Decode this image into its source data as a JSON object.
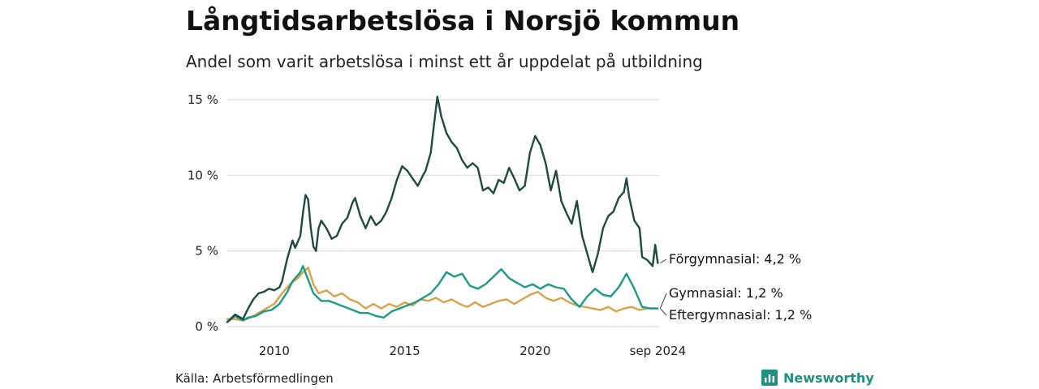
{
  "header": {
    "title": "Långtidsarbetslösa i Norsjö kommun",
    "subtitle": "Andel som varit arbetslösa i minst ett år uppdelat på utbildning"
  },
  "footer": {
    "source": "Källa: Arbetsförmedlingen",
    "brand": "Newsworthy",
    "brand_icon": "bar-chart-icon",
    "brand_color": "#1f9181"
  },
  "chart_data": {
    "type": "line",
    "xlim": [
      2008.2,
      2024.75
    ],
    "ylim": [
      0,
      15
    ],
    "y_ticks": [
      {
        "value": 0,
        "label": "0 %"
      },
      {
        "value": 5,
        "label": "5 %"
      },
      {
        "value": 10,
        "label": "10 %"
      },
      {
        "value": 15,
        "label": "15 %"
      }
    ],
    "x_ticks": [
      {
        "value": 2010,
        "label": "2010"
      },
      {
        "value": 2015,
        "label": "2015"
      },
      {
        "value": 2020,
        "label": "2020"
      },
      {
        "value": 2024.7,
        "label": "sep 2024"
      }
    ],
    "grid": true,
    "legend": "end-labels",
    "series": [
      {
        "label": "Förgymnasial: 4,2 %",
        "color": "#1e4a3f",
        "points": [
          [
            2008.2,
            0.3
          ],
          [
            2008.5,
            0.8
          ],
          [
            2008.8,
            0.5
          ],
          [
            2009.0,
            1.2
          ],
          [
            2009.2,
            1.8
          ],
          [
            2009.4,
            2.2
          ],
          [
            2009.6,
            2.3
          ],
          [
            2009.8,
            2.5
          ],
          [
            2010.0,
            2.4
          ],
          [
            2010.2,
            2.6
          ],
          [
            2010.3,
            3.0
          ],
          [
            2010.5,
            4.5
          ],
          [
            2010.7,
            5.7
          ],
          [
            2010.8,
            5.2
          ],
          [
            2011.0,
            6.0
          ],
          [
            2011.1,
            7.5
          ],
          [
            2011.2,
            8.7
          ],
          [
            2011.3,
            8.4
          ],
          [
            2011.4,
            6.5
          ],
          [
            2011.5,
            5.3
          ],
          [
            2011.6,
            5.0
          ],
          [
            2011.7,
            6.5
          ],
          [
            2011.8,
            7.0
          ],
          [
            2012.0,
            6.5
          ],
          [
            2012.2,
            5.8
          ],
          [
            2012.4,
            6.0
          ],
          [
            2012.6,
            6.8
          ],
          [
            2012.8,
            7.2
          ],
          [
            2013.0,
            8.2
          ],
          [
            2013.1,
            8.5
          ],
          [
            2013.3,
            7.3
          ],
          [
            2013.5,
            6.5
          ],
          [
            2013.7,
            7.3
          ],
          [
            2013.9,
            6.7
          ],
          [
            2014.1,
            7.0
          ],
          [
            2014.3,
            7.6
          ],
          [
            2014.5,
            8.5
          ],
          [
            2014.7,
            9.7
          ],
          [
            2014.9,
            10.6
          ],
          [
            2015.1,
            10.3
          ],
          [
            2015.3,
            9.8
          ],
          [
            2015.5,
            9.3
          ],
          [
            2015.7,
            10.0
          ],
          [
            2015.8,
            10.3
          ],
          [
            2016.0,
            11.5
          ],
          [
            2016.1,
            13.0
          ],
          [
            2016.25,
            15.2
          ],
          [
            2016.4,
            13.9
          ],
          [
            2016.6,
            12.8
          ],
          [
            2016.8,
            12.2
          ],
          [
            2017.0,
            11.8
          ],
          [
            2017.2,
            11.0
          ],
          [
            2017.4,
            10.5
          ],
          [
            2017.6,
            10.8
          ],
          [
            2017.8,
            10.5
          ],
          [
            2018.0,
            9.0
          ],
          [
            2018.2,
            9.2
          ],
          [
            2018.4,
            8.8
          ],
          [
            2018.6,
            9.7
          ],
          [
            2018.8,
            9.5
          ],
          [
            2019.0,
            10.5
          ],
          [
            2019.2,
            9.8
          ],
          [
            2019.4,
            9.0
          ],
          [
            2019.6,
            9.3
          ],
          [
            2019.8,
            11.5
          ],
          [
            2020.0,
            12.6
          ],
          [
            2020.2,
            12.0
          ],
          [
            2020.4,
            10.8
          ],
          [
            2020.6,
            9.0
          ],
          [
            2020.8,
            10.3
          ],
          [
            2021.0,
            8.3
          ],
          [
            2021.2,
            7.5
          ],
          [
            2021.4,
            6.8
          ],
          [
            2021.6,
            8.3
          ],
          [
            2021.8,
            6.0
          ],
          [
            2022.0,
            4.8
          ],
          [
            2022.2,
            3.6
          ],
          [
            2022.4,
            4.8
          ],
          [
            2022.6,
            6.5
          ],
          [
            2022.8,
            7.3
          ],
          [
            2023.0,
            7.6
          ],
          [
            2023.2,
            8.5
          ],
          [
            2023.4,
            8.9
          ],
          [
            2023.5,
            9.8
          ],
          [
            2023.6,
            8.6
          ],
          [
            2023.8,
            7.0
          ],
          [
            2024.0,
            6.5
          ],
          [
            2024.1,
            4.6
          ],
          [
            2024.3,
            4.4
          ],
          [
            2024.5,
            4.0
          ],
          [
            2024.6,
            5.4
          ],
          [
            2024.7,
            4.2
          ]
        ]
      },
      {
        "label": "Gymnasial: 1,2 %",
        "color": "#1d9a87",
        "points": [
          [
            2008.2,
            0.3
          ],
          [
            2008.5,
            0.7
          ],
          [
            2008.8,
            0.4
          ],
          [
            2009.0,
            0.6
          ],
          [
            2009.3,
            0.7
          ],
          [
            2009.6,
            1.0
          ],
          [
            2009.9,
            1.1
          ],
          [
            2010.2,
            1.5
          ],
          [
            2010.5,
            2.3
          ],
          [
            2010.7,
            3.0
          ],
          [
            2011.0,
            3.6
          ],
          [
            2011.1,
            4.0
          ],
          [
            2011.3,
            3.1
          ],
          [
            2011.5,
            2.2
          ],
          [
            2011.8,
            1.7
          ],
          [
            2012.1,
            1.7
          ],
          [
            2012.4,
            1.5
          ],
          [
            2012.7,
            1.3
          ],
          [
            2013.0,
            1.1
          ],
          [
            2013.3,
            0.9
          ],
          [
            2013.6,
            0.9
          ],
          [
            2013.9,
            0.7
          ],
          [
            2014.2,
            0.6
          ],
          [
            2014.5,
            1.0
          ],
          [
            2014.8,
            1.2
          ],
          [
            2015.1,
            1.4
          ],
          [
            2015.4,
            1.6
          ],
          [
            2015.7,
            1.9
          ],
          [
            2016.0,
            2.2
          ],
          [
            2016.3,
            2.8
          ],
          [
            2016.6,
            3.6
          ],
          [
            2016.9,
            3.3
          ],
          [
            2017.2,
            3.5
          ],
          [
            2017.5,
            2.7
          ],
          [
            2017.8,
            2.5
          ],
          [
            2018.1,
            2.8
          ],
          [
            2018.4,
            3.3
          ],
          [
            2018.7,
            3.8
          ],
          [
            2019.0,
            3.2
          ],
          [
            2019.3,
            2.9
          ],
          [
            2019.6,
            2.6
          ],
          [
            2019.9,
            2.8
          ],
          [
            2020.2,
            2.5
          ],
          [
            2020.5,
            2.8
          ],
          [
            2020.8,
            2.6
          ],
          [
            2021.1,
            2.5
          ],
          [
            2021.4,
            1.8
          ],
          [
            2021.7,
            1.3
          ],
          [
            2022.0,
            2.0
          ],
          [
            2022.3,
            2.5
          ],
          [
            2022.6,
            2.1
          ],
          [
            2022.9,
            2.0
          ],
          [
            2023.2,
            2.6
          ],
          [
            2023.5,
            3.5
          ],
          [
            2023.8,
            2.5
          ],
          [
            2024.1,
            1.3
          ],
          [
            2024.4,
            1.2
          ],
          [
            2024.7,
            1.2
          ]
        ]
      },
      {
        "label": "Eftergymnasial: 1,2 %",
        "color": "#d6a24a",
        "points": [
          [
            2008.2,
            0.5
          ],
          [
            2008.5,
            0.5
          ],
          [
            2008.8,
            0.4
          ],
          [
            2009.1,
            0.6
          ],
          [
            2009.4,
            0.9
          ],
          [
            2009.7,
            1.2
          ],
          [
            2010.0,
            1.5
          ],
          [
            2010.3,
            2.2
          ],
          [
            2010.6,
            2.8
          ],
          [
            2010.9,
            3.2
          ],
          [
            2011.1,
            3.6
          ],
          [
            2011.3,
            3.9
          ],
          [
            2011.5,
            2.8
          ],
          [
            2011.7,
            2.2
          ],
          [
            2012.0,
            2.4
          ],
          [
            2012.3,
            2.0
          ],
          [
            2012.6,
            2.2
          ],
          [
            2012.9,
            1.8
          ],
          [
            2013.2,
            1.6
          ],
          [
            2013.5,
            1.2
          ],
          [
            2013.8,
            1.5
          ],
          [
            2014.1,
            1.2
          ],
          [
            2014.4,
            1.5
          ],
          [
            2014.7,
            1.3
          ],
          [
            2015.0,
            1.6
          ],
          [
            2015.3,
            1.4
          ],
          [
            2015.6,
            1.8
          ],
          [
            2015.9,
            1.7
          ],
          [
            2016.2,
            1.9
          ],
          [
            2016.5,
            1.6
          ],
          [
            2016.8,
            1.8
          ],
          [
            2017.1,
            1.5
          ],
          [
            2017.4,
            1.3
          ],
          [
            2017.7,
            1.6
          ],
          [
            2018.0,
            1.3
          ],
          [
            2018.3,
            1.5
          ],
          [
            2018.6,
            1.7
          ],
          [
            2018.9,
            1.8
          ],
          [
            2019.2,
            1.5
          ],
          [
            2019.5,
            1.8
          ],
          [
            2019.8,
            2.1
          ],
          [
            2020.1,
            2.3
          ],
          [
            2020.4,
            1.9
          ],
          [
            2020.7,
            1.7
          ],
          [
            2021.0,
            1.9
          ],
          [
            2021.3,
            1.6
          ],
          [
            2021.6,
            1.4
          ],
          [
            2021.9,
            1.3
          ],
          [
            2022.2,
            1.2
          ],
          [
            2022.5,
            1.1
          ],
          [
            2022.8,
            1.3
          ],
          [
            2023.1,
            1.0
          ],
          [
            2023.4,
            1.2
          ],
          [
            2023.7,
            1.3
          ],
          [
            2024.0,
            1.1
          ],
          [
            2024.3,
            1.2
          ],
          [
            2024.7,
            1.2
          ]
        ]
      }
    ]
  }
}
